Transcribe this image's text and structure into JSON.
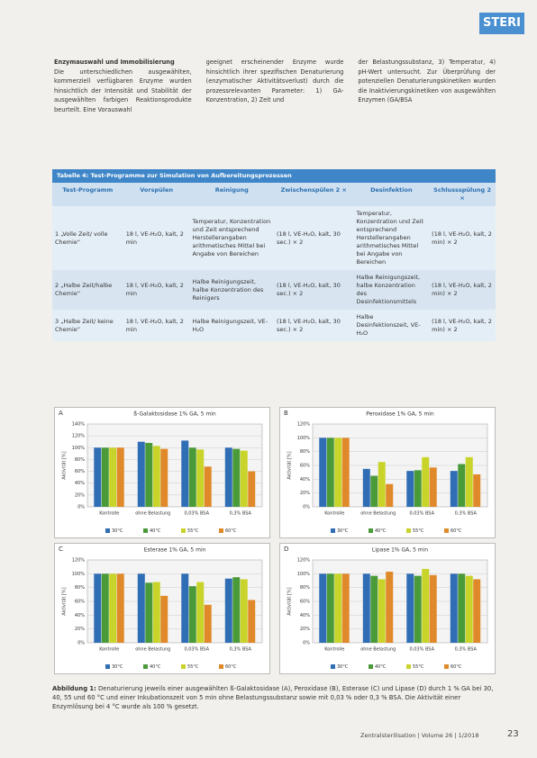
{
  "header": {
    "logo": "STERI"
  },
  "text_columns": [
    {
      "heading": "Enzymauswahl und Immobilisierung",
      "body": "Die unterschiedlichen ausgewählten, kommerziell verfügbaren Enzyme wurden hinsichtlich der Intensität und Stabilität der ausgewählten farbigen Reaktionsprodukte beurteilt. Eine Vorauswahl"
    },
    {
      "body": "geeignet erscheinender Enzyme wurde hinsichtlich ihrer spezifischen Denaturierung (enzymatischer Aktivitätsverlust) durch die prozessrelevanten Parameter: 1) GA-Konzentration, 2) Zeit und"
    },
    {
      "body": "der Belastungssubstanz, 3) Temperatur, 4) pH-Wert untersucht. Zur Überprüfung der potenziellen Denaturierungskinetiken wurden die Inaktivierungskinetiken von ausgewählten Enzymen (GA/BSA"
    }
  ],
  "table": {
    "title": "Tabelle 4: Test-Programme zur Simulation von Aufbereitungsprozessen",
    "headers": [
      "Test-Programm",
      "Vorspülen",
      "Reinigung",
      "Zwischenspülen 2 ×",
      "Desinfektion",
      "Schlussspülung 2 ×"
    ],
    "rows": [
      [
        "1 „Volle Zeit/ volle Chemie“",
        "18 l, VE-H₂O, kalt, 2 min",
        "Temperatur, Konzentration und Zeit entsprechend Herstellerangaben arithmetisches Mittel bei Angabe von Bereichen",
        "(18 l, VE-H₂O, kalt, 30 sec.) × 2",
        "Temperatur, Konzentration und Zeit entsprechend Herstellerangaben arithmetisches Mittel bei Angabe von Bereichen",
        "(18 l, VE-H₂O, kalt, 2 min) × 2"
      ],
      [
        "2 „Halbe Zeit/halbe Chemie“",
        "18 l, VE-H₂O, kalt, 2 min",
        "Halbe Reinigungszeit, halbe Konzentration des Reinigers",
        "(18 l, VE-H₂O, kalt, 30 sec.) × 2",
        "Halbe Reinigungszeit, halbe Konzentration des Desinfektionsmittels",
        "(18 l, VE-H₂O, kalt, 2 min) × 2"
      ],
      [
        "3 „Halbe Zeit/ keine Chemie“",
        "18 l, VE-H₂O, kalt, 2 min",
        "Halbe Reinigungszeit, VE-H₂O",
        "(18 l, VE-H₂O, kalt, 30 sec.) × 2",
        "Halbe Desinfektionszeit, VE-H₂O",
        "(18 l, VE-H₂O, kalt, 2 min) × 2"
      ]
    ]
  },
  "figures": [
    {
      "type": "bar",
      "label": "A",
      "title": "ß-Galaktosidase 1% GA, 5 min",
      "y_label": "Aktivität [%]",
      "categories": [
        "Kontrolle",
        "ohne Belastung",
        "0,03% BSA",
        "0,3% BSA"
      ],
      "series": [
        {
          "name": "30°C",
          "color": "#2f6db5",
          "values": [
            100,
            110,
            112,
            100
          ]
        },
        {
          "name": "40°C",
          "color": "#4a9a3a",
          "values": [
            100,
            108,
            100,
            98
          ]
        },
        {
          "name": "55°C",
          "color": "#c8d42a",
          "values": [
            100,
            103,
            97,
            95
          ]
        },
        {
          "name": "60°C",
          "color": "#e0892a",
          "values": [
            100,
            98,
            68,
            60
          ]
        }
      ],
      "ylim": [
        0,
        140
      ],
      "yticks": [
        {
          "value": 0,
          "label": "0%"
        },
        {
          "value": 20,
          "label": "20%"
        },
        {
          "value": 40,
          "label": "40%"
        },
        {
          "value": 60,
          "label": "60%"
        },
        {
          "value": 80,
          "label": "80%"
        },
        {
          "value": 100,
          "label": "100%"
        },
        {
          "value": 120,
          "label": "120%"
        },
        {
          "value": 140,
          "label": "140%"
        }
      ]
    },
    {
      "type": "bar",
      "label": "B",
      "title": "Peroxidase 1% GA, 5 min",
      "y_label": "Aktivität [%]",
      "categories": [
        "Kontrolle",
        "ohne Belastung",
        "0,03% BSA",
        "0,3% BSA"
      ],
      "series": [
        {
          "name": "30°C",
          "color": "#2f6db5",
          "values": [
            100,
            55,
            52,
            52
          ]
        },
        {
          "name": "40°C",
          "color": "#4a9a3a",
          "values": [
            100,
            45,
            53,
            62
          ]
        },
        {
          "name": "55°C",
          "color": "#c8d42a",
          "values": [
            100,
            65,
            72,
            72
          ]
        },
        {
          "name": "60°C",
          "color": "#e0892a",
          "values": [
            100,
            33,
            57,
            47
          ]
        }
      ],
      "ylim": [
        0,
        120
      ],
      "yticks": [
        {
          "value": 0,
          "label": "0%"
        },
        {
          "value": 20,
          "label": "20%"
        },
        {
          "value": 40,
          "label": "40%"
        },
        {
          "value": 60,
          "label": "60%"
        },
        {
          "value": 80,
          "label": "80%"
        },
        {
          "value": 100,
          "label": "100%"
        },
        {
          "value": 120,
          "label": "120%"
        }
      ]
    },
    {
      "type": "bar",
      "label": "C",
      "title": "Esterase 1% GA, 5 min",
      "y_label": "Aktivität [%]",
      "categories": [
        "Kontrolle",
        "ohne Belastung",
        "0,03% BSA",
        "0,3% BSA"
      ],
      "series": [
        {
          "name": "30°C",
          "color": "#2f6db5",
          "values": [
            100,
            100,
            100,
            93
          ]
        },
        {
          "name": "40°C",
          "color": "#4a9a3a",
          "values": [
            100,
            87,
            82,
            95
          ]
        },
        {
          "name": "55°C",
          "color": "#c8d42a",
          "values": [
            100,
            88,
            88,
            92
          ]
        },
        {
          "name": "60°C",
          "color": "#e0892a",
          "values": [
            100,
            68,
            55,
            62
          ]
        }
      ],
      "ylim": [
        0,
        120
      ],
      "yticks": [
        {
          "value": 0,
          "label": "0%"
        },
        {
          "value": 20,
          "label": "20%"
        },
        {
          "value": 40,
          "label": "40%"
        },
        {
          "value": 60,
          "label": "60%"
        },
        {
          "value": 80,
          "label": "80%"
        },
        {
          "value": 100,
          "label": "100%"
        },
        {
          "value": 120,
          "label": "120%"
        }
      ]
    },
    {
      "type": "bar",
      "label": "D",
      "title": "Lipase 1% GA, 5 min",
      "y_label": "Aktivität [%]",
      "categories": [
        "Kontrolle",
        "ohne Belastung",
        "0,03% BSA",
        "0,3% BSA"
      ],
      "series": [
        {
          "name": "30°C",
          "color": "#2f6db5",
          "values": [
            100,
            100,
            100,
            100
          ]
        },
        {
          "name": "40°C",
          "color": "#4a9a3a",
          "values": [
            100,
            97,
            97,
            100
          ]
        },
        {
          "name": "55°C",
          "color": "#c8d42a",
          "values": [
            100,
            92,
            107,
            97
          ]
        },
        {
          "name": "60°C",
          "color": "#e0892a",
          "values": [
            100,
            103,
            98,
            92
          ]
        }
      ],
      "ylim": [
        0,
        120
      ],
      "yticks": [
        {
          "value": 0,
          "label": "0%"
        },
        {
          "value": 20,
          "label": "20%"
        },
        {
          "value": 40,
          "label": "40%"
        },
        {
          "value": 60,
          "label": "60%"
        },
        {
          "value": 80,
          "label": "80%"
        },
        {
          "value": 100,
          "label": "100%"
        },
        {
          "value": 120,
          "label": "120%"
        }
      ]
    }
  ],
  "caption": {
    "lead": "Abbildung 1:",
    "text": "Denaturierung jeweils einer ausgewählten ß-Galaktosidase (A), Peroxidase (B), Esterase (C) und Lipase (D) durch 1 % GA bei 30, 40, 55 und 60 °C und einer Inkubationszeit von 5 min ohne Belastungssubstanz sowie mit 0,03 % oder 0,3 % BSA. Die Aktivität einer Enzymlösung bei 4 °C wurde als 100 % gesetzt."
  },
  "footer": {
    "journal": "Zentralsterilisation | Volume 26 | 1/2018",
    "page": "23"
  }
}
